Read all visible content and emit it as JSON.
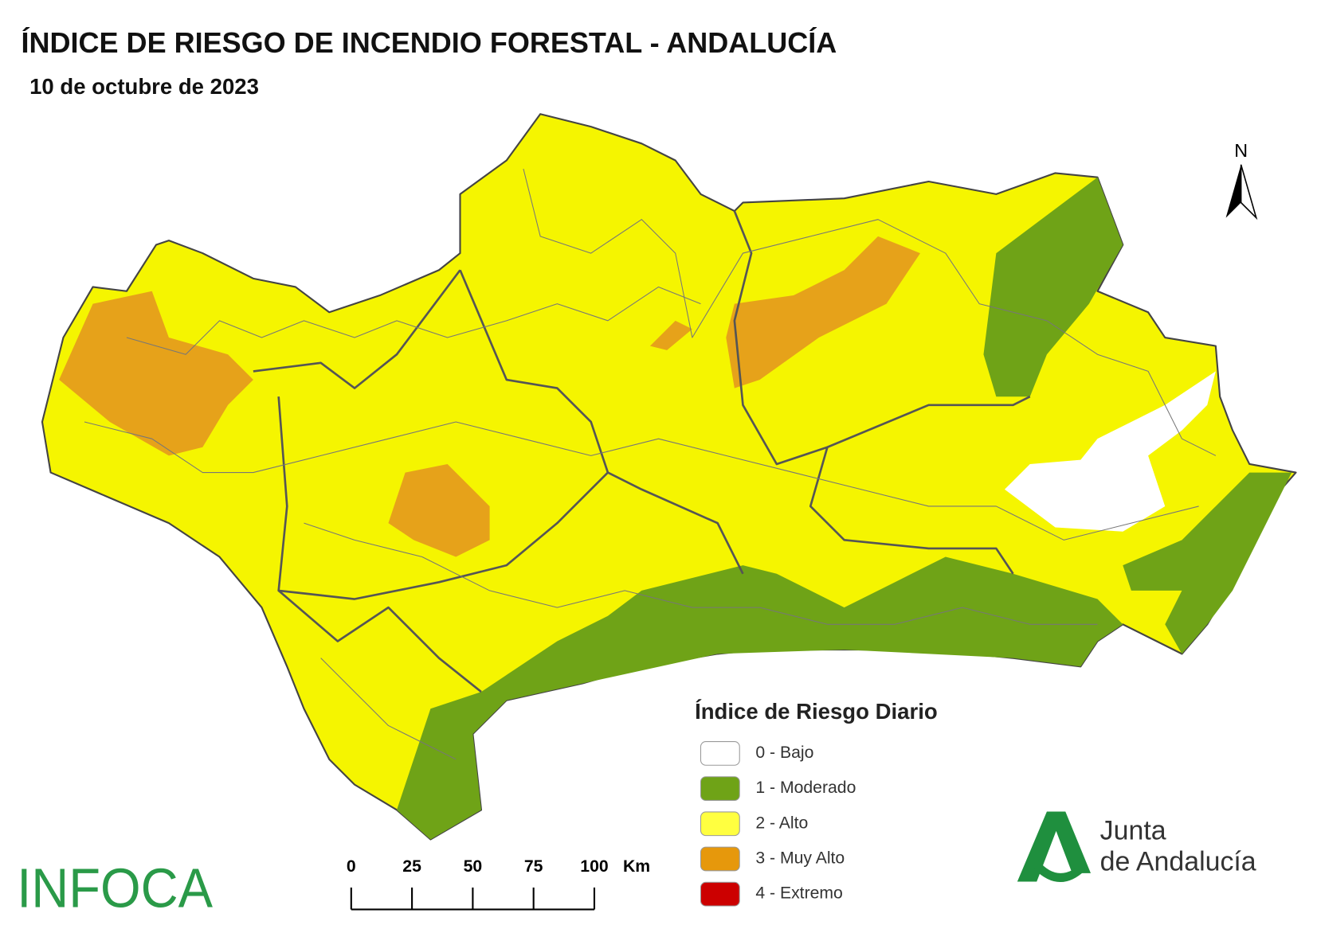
{
  "header": {
    "title": "ÍNDICE DE RIESGO DE INCENDIO FORESTAL - ANDALUCÍA",
    "subtitle": "10 de octubre de 2023"
  },
  "map": {
    "north_label": "N"
  },
  "legend": {
    "title": "Índice de Riesgo Diario",
    "items": [
      {
        "label": "0 - Bajo",
        "color": "#ffffff"
      },
      {
        "label": "1 - Moderado",
        "color": "#6fa317"
      },
      {
        "label": "2 - Alto",
        "color": "#ffff40"
      },
      {
        "label": "3 - Muy Alto",
        "color": "#e6980c"
      },
      {
        "label": "4 - Extremo",
        "color": "#cc0000"
      }
    ]
  },
  "scale_bar": {
    "ticks": [
      0,
      25,
      50,
      75,
      100
    ],
    "unit": "Km"
  },
  "logos": {
    "infoca": "INFOCA",
    "junta_line1": "Junta",
    "junta_line2": "de Andalucía"
  }
}
